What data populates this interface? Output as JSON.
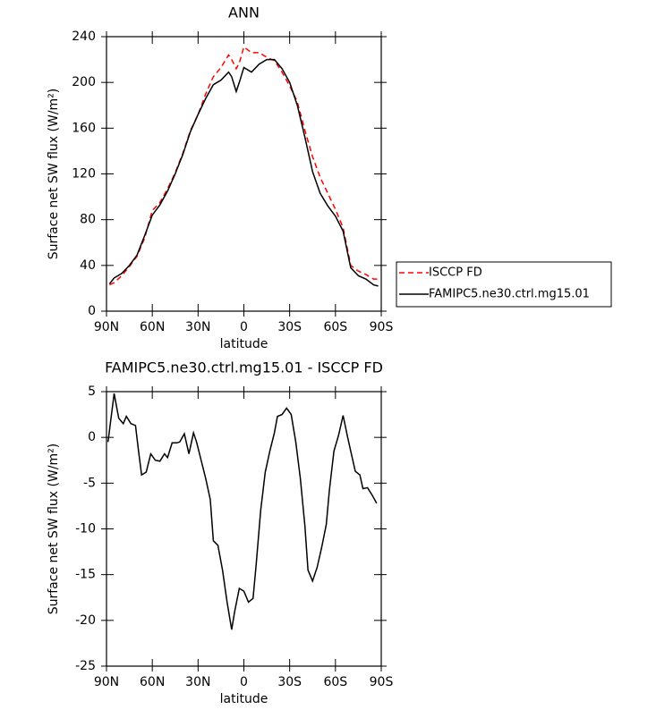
{
  "chart_data": [
    {
      "type": "line",
      "title": "ANN",
      "x_label": "latitude",
      "y_label": "Surface net SW flux (W/m²)",
      "x": [
        88,
        85,
        80,
        75,
        70,
        65,
        60,
        55,
        50,
        45,
        40,
        35,
        30,
        25,
        20,
        15,
        10,
        8,
        5,
        3,
        0,
        -5,
        -10,
        -15,
        -20,
        -25,
        -30,
        -35,
        -40,
        -45,
        -50,
        -55,
        -60,
        -65,
        -70,
        -75,
        -80,
        -85,
        -88
      ],
      "series": [
        {
          "name": "ISCCP FD",
          "color": "#ff0000",
          "dashed": true,
          "values": [
            23,
            25,
            31,
            39,
            48,
            64,
            88,
            95,
            107,
            121,
            138,
            158,
            172,
            190,
            205,
            213,
            224,
            220,
            212,
            217,
            231,
            226,
            226,
            222,
            219,
            209,
            197,
            183,
            158,
            135,
            117,
            103,
            89,
            73,
            40,
            35,
            32,
            28,
            28
          ]
        },
        {
          "name": "FAMIPC5.ne30.ctrl.mg15.01",
          "color": "#000000",
          "dashed": false,
          "values": [
            24,
            29,
            33,
            40,
            49,
            66,
            84,
            93,
            105,
            120,
            137,
            157,
            172,
            186,
            198,
            202,
            209,
            205,
            192,
            200,
            213,
            209,
            216,
            220,
            220,
            212,
            200,
            180,
            152,
            122,
            103,
            92,
            83,
            70,
            38,
            31,
            28,
            23,
            22
          ]
        }
      ],
      "xlim": [
        90,
        -90
      ],
      "xticks": [
        {
          "value": 90,
          "label": "90N"
        },
        {
          "value": 60,
          "label": "60N"
        },
        {
          "value": 30,
          "label": "30N"
        },
        0,
        {
          "value": -30,
          "label": "30S"
        },
        {
          "value": -60,
          "label": "60S"
        },
        {
          "value": -90,
          "label": "90S"
        }
      ],
      "ylim": [
        0,
        240
      ],
      "yticks": [
        0,
        40,
        80,
        120,
        160,
        200,
        240
      ],
      "legend": "right"
    },
    {
      "type": "line",
      "title": "FAMIPC5.ne30.ctrl.mg15.01 - ISCCP FD",
      "x_label": "latitude",
      "y_label": "Surface net SW flux (W/m²)",
      "x": [
        89,
        85,
        82,
        79,
        77,
        74,
        71,
        69,
        67,
        64,
        61,
        58,
        55,
        52,
        50,
        47,
        44,
        42,
        39,
        36,
        33,
        31,
        28,
        25,
        22,
        20,
        17,
        14,
        11,
        8,
        6,
        3,
        0,
        -3,
        -6,
        -8,
        -11,
        -14,
        -17,
        -20,
        -22,
        -25,
        -28,
        -31,
        -34,
        -37,
        -40,
        -42,
        -45,
        -48,
        -51,
        -54,
        -56,
        -59,
        -62,
        -65,
        -68,
        -70,
        -73,
        -76,
        -78,
        -81,
        -84,
        -87
      ],
      "values": [
        -0.5,
        4.8,
        2.1,
        1.5,
        2.3,
        1.5,
        1.3,
        -1.5,
        -4.1,
        -3.8,
        -1.8,
        -2.5,
        -2.6,
        -1.8,
        -2.2,
        -0.6,
        -0.6,
        -0.5,
        0.4,
        -1.8,
        0.5,
        -0.5,
        -2.5,
        -4.5,
        -6.8,
        -11.3,
        -11.8,
        -14.5,
        -18,
        -21,
        -19,
        -16.5,
        -16.8,
        -18,
        -17.6,
        -14,
        -8,
        -3.8,
        -1.5,
        0.5,
        2.3,
        2.5,
        3.2,
        2.5,
        -0.5,
        -4.5,
        -9.7,
        -14.5,
        -15.7,
        -14.2,
        -12,
        -9.5,
        -5.8,
        -1.5,
        0.2,
        2.4,
        0,
        -1.5,
        -3.7,
        -4.1,
        -5.6,
        -5.5,
        -6.3,
        -7.2
      ],
      "color": "#000000",
      "xlim": [
        90,
        -90
      ],
      "xticks": [
        {
          "value": 90,
          "label": "90N"
        },
        {
          "value": 60,
          "label": "60N"
        },
        {
          "value": 30,
          "label": "30N"
        },
        0,
        {
          "value": -30,
          "label": "30S"
        },
        {
          "value": -60,
          "label": "60S"
        },
        {
          "value": -90,
          "label": "90S"
        }
      ],
      "ylim": [
        -25,
        5
      ],
      "yticks": [
        -25,
        -20,
        -15,
        -10,
        -5,
        0,
        5
      ]
    }
  ]
}
